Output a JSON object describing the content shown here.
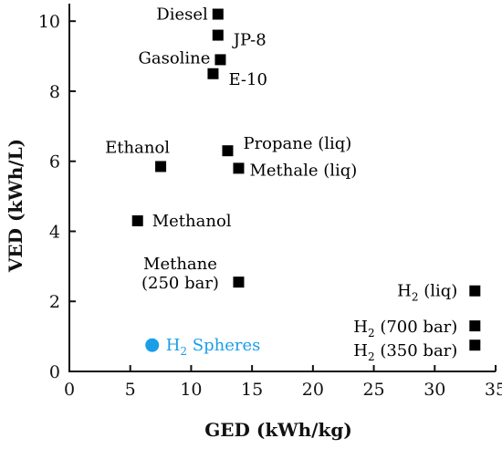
{
  "chart_data": {
    "type": "scatter",
    "xlabel": "GED (kWh/kg)",
    "ylabel": "VED (kWh/L)",
    "xlim": [
      0,
      35
    ],
    "ylim": [
      0,
      10.5
    ],
    "x_ticks": [
      "0",
      "5",
      "10",
      "15",
      "20",
      "25",
      "30",
      "35"
    ],
    "y_ticks": [
      "0",
      "2",
      "4",
      "6",
      "8",
      "10"
    ],
    "grid": false,
    "colors": {
      "marker": "#000000",
      "highlight": "#1a9ee8"
    },
    "points": [
      {
        "name": "Diesel",
        "label": "Diesel",
        "x": 12.2,
        "y": 10.2,
        "marker": "square"
      },
      {
        "name": "JP-8",
        "label": "JP-8",
        "x": 12.2,
        "y": 9.6,
        "marker": "square"
      },
      {
        "name": "Gasoline",
        "label": "Gasoline",
        "x": 12.4,
        "y": 8.9,
        "marker": "square"
      },
      {
        "name": "E-10",
        "label": "E-10",
        "x": 11.8,
        "y": 8.5,
        "marker": "square"
      },
      {
        "name": "Ethanol",
        "label": "Ethanol",
        "x": 7.5,
        "y": 5.85,
        "marker": "square"
      },
      {
        "name": "Propane (liq)",
        "label": "Propane (liq)",
        "x": 13.0,
        "y": 6.3,
        "marker": "square"
      },
      {
        "name": "Methale (liq)",
        "label": "Methale (liq)",
        "x": 13.9,
        "y": 5.8,
        "marker": "square"
      },
      {
        "name": "Methanol",
        "label": "Methanol",
        "x": 5.6,
        "y": 4.3,
        "marker": "square"
      },
      {
        "name": "Methane (250 bar)",
        "label_lines": [
          "Methane",
          "(250 bar)"
        ],
        "x": 13.9,
        "y": 2.55,
        "marker": "square"
      },
      {
        "name": "H2 (liq)",
        "label_main": "H",
        "label_sub": "2",
        "label_rest": " (liq)",
        "x": 33.3,
        "y": 2.3,
        "marker": "square"
      },
      {
        "name": "H2 (700 bar)",
        "label_main": "H",
        "label_sub": "2",
        "label_rest": " (700 bar)",
        "x": 33.3,
        "y": 1.3,
        "marker": "square"
      },
      {
        "name": "H2 (350 bar)",
        "label_main": "H",
        "label_sub": "2",
        "label_rest": " (350 bar)",
        "x": 33.3,
        "y": 0.75,
        "marker": "square"
      },
      {
        "name": "H2 Spheres",
        "label_main": "H",
        "label_sub": "2",
        "label_rest": " Spheres",
        "x": 6.8,
        "y": 0.75,
        "marker": "circle",
        "highlight": true
      }
    ]
  }
}
